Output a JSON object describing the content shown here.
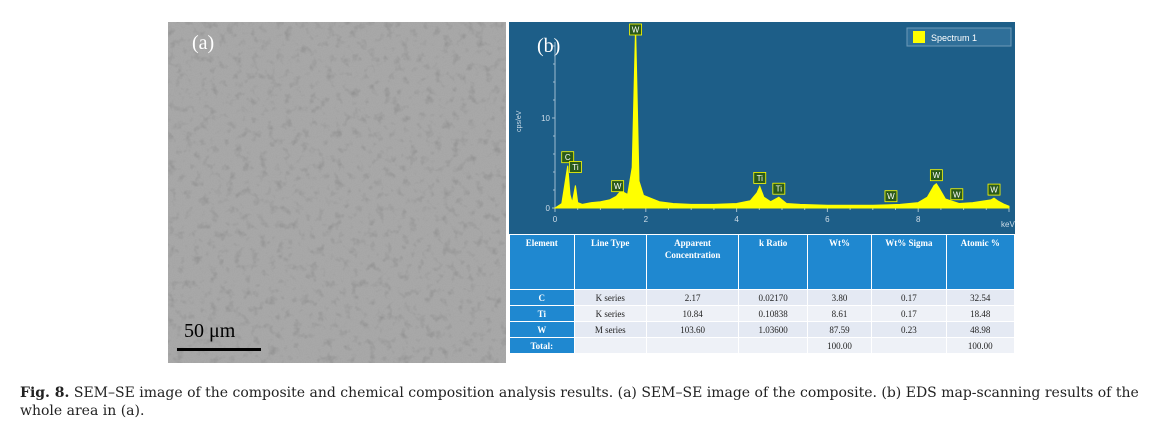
{
  "panel_a": {
    "label": "(a)",
    "scale_label": "50 μm"
  },
  "panel_b": {
    "label": "(b)",
    "legend": "Spectrum 1",
    "y_axis_label": "cps/eV",
    "x_axis_label": "keV"
  },
  "chart_data": {
    "type": "line",
    "title": "",
    "xlabel": "keV",
    "ylabel": "cps/eV",
    "xlim": [
      0,
      10
    ],
    "ylim": [
      0,
      20
    ],
    "x_ticks": [
      "0",
      "2",
      "4",
      "6",
      "8"
    ],
    "y_ticks": [
      "0",
      "10"
    ],
    "legend_position": "top-right",
    "series": [
      {
        "name": "Spectrum 1",
        "color": "#ffff00",
        "x": [
          0.0,
          0.15,
          0.28,
          0.33,
          0.38,
          0.45,
          0.5,
          0.6,
          0.8,
          1.0,
          1.2,
          1.35,
          1.45,
          1.6,
          1.7,
          1.775,
          1.85,
          1.95,
          2.1,
          2.3,
          2.6,
          3.0,
          3.5,
          4.0,
          4.3,
          4.45,
          4.51,
          4.6,
          4.75,
          4.93,
          5.1,
          5.4,
          6.0,
          7.0,
          7.6,
          8.0,
          8.2,
          8.35,
          8.4,
          8.45,
          8.6,
          8.9,
          9.2,
          9.6,
          9.67,
          9.75,
          9.9,
          10.0
        ],
        "y": [
          0.0,
          0.5,
          4.7,
          1.5,
          0.6,
          2.5,
          0.6,
          0.4,
          0.6,
          0.7,
          0.9,
          1.3,
          1.9,
          1.5,
          4.5,
          20.2,
          3.0,
          1.4,
          1.1,
          0.7,
          0.5,
          0.4,
          0.4,
          0.5,
          0.8,
          1.7,
          2.4,
          1.2,
          0.7,
          1.2,
          0.5,
          0.4,
          0.3,
          0.3,
          0.4,
          0.6,
          1.2,
          2.5,
          2.7,
          2.3,
          1.0,
          0.5,
          0.6,
          0.9,
          1.1,
          0.8,
          0.4,
          0.2
        ]
      }
    ],
    "annotations": [
      {
        "text": "C",
        "x": 0.28
      },
      {
        "text": "Ti",
        "x": 0.45
      },
      {
        "text": "W",
        "x": 1.38
      },
      {
        "text": "W",
        "x": 1.775
      },
      {
        "text": "Ti",
        "x": 4.51
      },
      {
        "text": "Ti",
        "x": 4.93
      },
      {
        "text": "W",
        "x": 7.4
      },
      {
        "text": "W",
        "x": 8.4
      },
      {
        "text": "W",
        "x": 8.85
      },
      {
        "text": "W",
        "x": 9.67
      }
    ]
  },
  "table": {
    "headers": [
      "Element",
      "Line Type",
      "Apparent Concentration",
      "k Ratio",
      "Wt%",
      "Wt% Sigma",
      "Atomic %"
    ],
    "rows": [
      [
        "C",
        "K series",
        "2.17",
        "0.02170",
        "3.80",
        "0.17",
        "32.54"
      ],
      [
        "Ti",
        "K series",
        "10.84",
        "0.10838",
        "8.61",
        "0.17",
        "18.48"
      ],
      [
        "W",
        "M series",
        "103.60",
        "1.03600",
        "87.59",
        "0.23",
        "48.98"
      ],
      [
        "Total:",
        "",
        "",
        "",
        "100.00",
        "",
        "100.00"
      ]
    ]
  },
  "caption": {
    "fig_label": "Fig. 8.",
    "text": " SEM–SE image of the composite and chemical composition analysis results. (a) SEM–SE image of the composite. (b) EDS map-scanning results of the whole area in (a)."
  }
}
